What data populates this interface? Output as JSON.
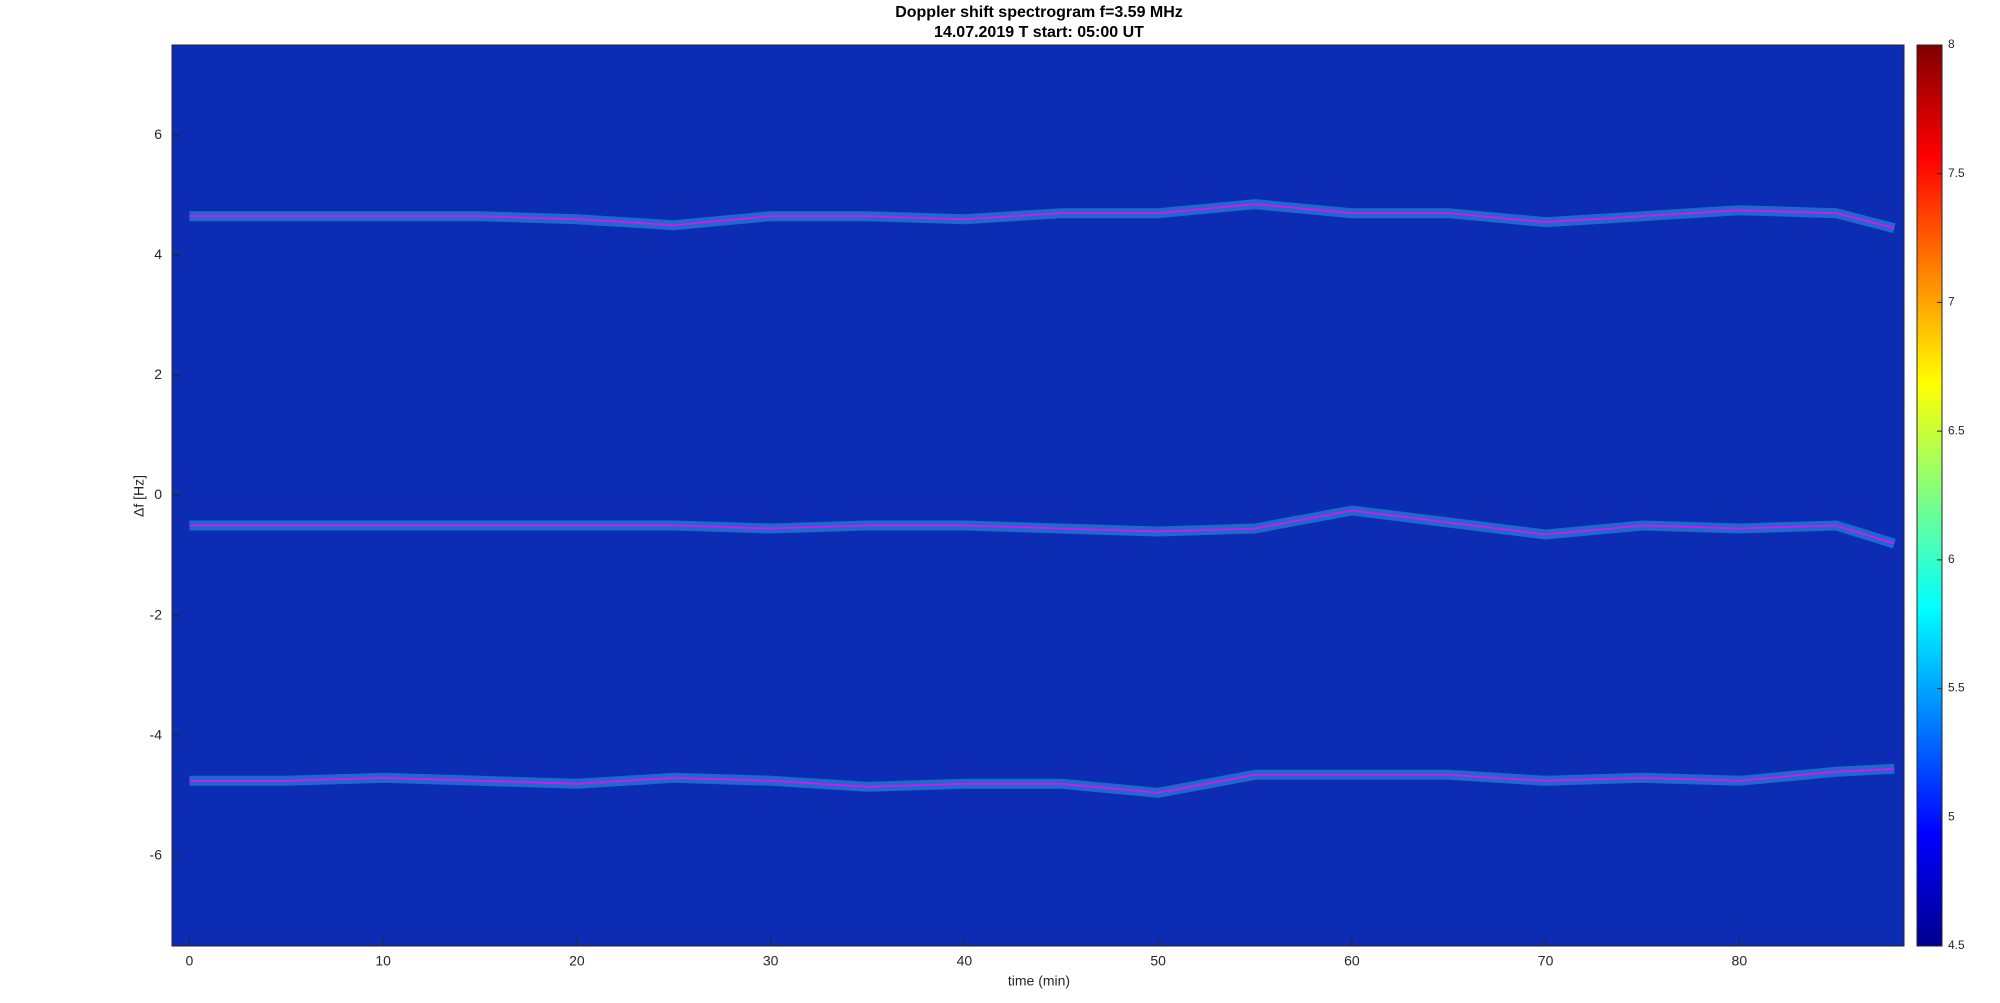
{
  "chart_data": {
    "type": "spectrogram",
    "title": "Doppler shift spectrogram f=3.59 MHz",
    "subtitle": "14.07.2019    T start: 05:00 UT",
    "x_label": "time (min)",
    "y_label": "Δf [Hz]",
    "x": [
      0,
      5,
      10,
      15,
      20,
      25,
      30,
      35,
      40,
      45,
      50,
      55,
      60,
      65,
      70,
      75,
      80,
      85,
      88
    ],
    "series": [
      {
        "color": "#ff00ff",
        "values": [
          4.65,
          4.65,
          4.65,
          4.65,
          4.6,
          4.5,
          4.65,
          4.65,
          4.6,
          4.7,
          4.7,
          4.85,
          4.7,
          4.7,
          4.55,
          4.65,
          4.75,
          4.7,
          4.45
        ]
      },
      {
        "color": "#ff00ff",
        "values": [
          -0.5,
          -0.5,
          -0.5,
          -0.5,
          -0.5,
          -0.5,
          -0.55,
          -0.5,
          -0.5,
          -0.55,
          -0.6,
          -0.55,
          -0.25,
          -0.45,
          -0.65,
          -0.5,
          -0.55,
          -0.5,
          -0.8
        ]
      },
      {
        "color": "#ff00ff",
        "values": [
          -4.75,
          -4.75,
          -4.7,
          -4.75,
          -4.8,
          -4.7,
          -4.75,
          -4.85,
          -4.8,
          -4.8,
          -4.95,
          -4.65,
          -4.65,
          -4.65,
          -4.75,
          -4.7,
          -4.75,
          -4.6,
          -4.55
        ]
      }
    ],
    "background_color": "#0b2cb3",
    "xlim": [
      -0.9,
      88.5
    ],
    "xticks": [
      0,
      10,
      20,
      30,
      40,
      50,
      60,
      70,
      80
    ],
    "ylim": [
      -7.5,
      7.5
    ],
    "yticks": [
      -6,
      -4,
      -2,
      0,
      2,
      4,
      6
    ],
    "colorbar": {
      "lim": [
        4.5,
        8
      ],
      "ticks": [
        4.5,
        5,
        5.5,
        6,
        6.5,
        7,
        7.5,
        8
      ],
      "colors": [
        "#00008f",
        "#0000ff",
        "#0080ff",
        "#00ffff",
        "#80ff80",
        "#ffff00",
        "#ff8000",
        "#ff0000",
        "#800000"
      ]
    }
  }
}
